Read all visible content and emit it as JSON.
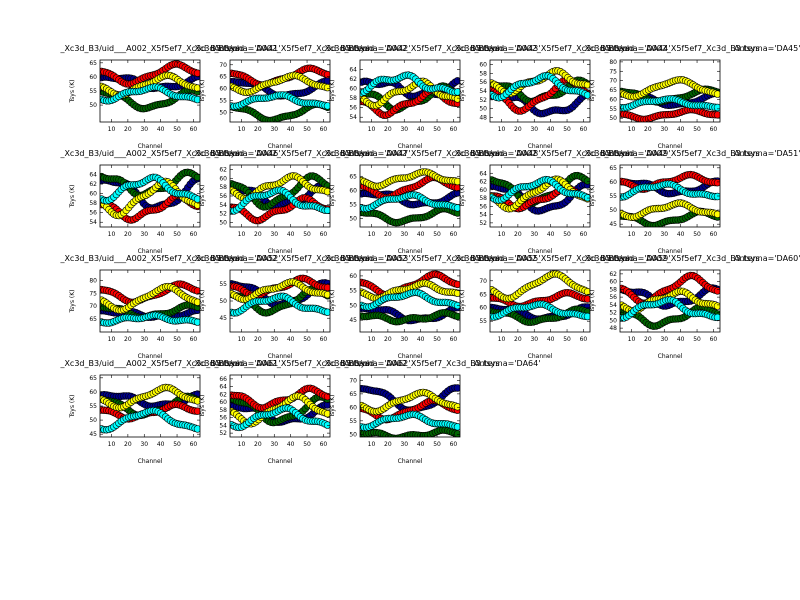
{
  "figure": {
    "xlabel": "Channel",
    "ylabel": "Tsys (K)",
    "series_colors": {
      "XX_spw1": "#00008b",
      "YY_spw1": "#006400",
      "XX_spw2": "#ff0000",
      "YY_spw2": "#ffff00",
      "XX_spw3": "#00ffff"
    },
    "marker_edge": "#000000"
  },
  "chart_data": [
    {
      "type": "scatter",
      "title": "uid___A002_X5f5ef7_Xc3d_B3/uid___A002_X5f5ef7_Xc3d_B3.tsys  Antenna='DA41'",
      "title_left": "_Xc3d_B3/uid___A002_X5f5ef7_Xc3d_B3.tsys",
      "title_right": "Antenna='DA41'",
      "xlim": [
        3,
        64
      ],
      "ylim": [
        44,
        66
      ],
      "xticks": [
        10,
        20,
        30,
        40,
        50,
        60
      ],
      "yticks": [
        50,
        55,
        60,
        65
      ],
      "curves": [
        {
          "base": 58,
          "amp": 2,
          "phase": 0.2
        },
        {
          "base": 52,
          "amp": 3,
          "phase": 1.1
        },
        {
          "base": 61,
          "amp": 3,
          "phase": 2.3
        },
        {
          "base": 57,
          "amp": 3,
          "phase": 3.0
        },
        {
          "base": 54,
          "amp": 2,
          "phase": 4.1
        }
      ]
    },
    {
      "type": "scatter",
      "title": "uid___A002_X5f5ef7_Xc3d_B3/uid___A002_X5f5ef7_Xc3d_B3.tsys  Antenna='DA42'",
      "title_left": "_Xc3d_B3/uid___A002_X5f5ef7_Xc3d_B3.tsys",
      "title_right": "Antenna='DA42'",
      "xlim": [
        3,
        64
      ],
      "ylim": [
        46,
        72
      ],
      "xticks": [
        10,
        20,
        30,
        40,
        50,
        60
      ],
      "yticks": [
        50,
        55,
        60,
        65,
        70
      ],
      "curves": [
        {
          "base": 60,
          "amp": 3,
          "phase": 0.5
        },
        {
          "base": 50,
          "amp": 3,
          "phase": 1.4
        },
        {
          "base": 65,
          "amp": 3,
          "phase": 2.0
        },
        {
          "base": 62,
          "amp": 3,
          "phase": 3.3
        },
        {
          "base": 55,
          "amp": 2,
          "phase": 4.4
        }
      ]
    },
    {
      "type": "scatter",
      "title": "uid___A002_X5f5ef7_Xc3d_B3/uid___A002_X5f5ef7_Xc3d_B3.tsys  Antenna='DA43'",
      "title_left": "_Xc3d_B3/uid___A002_X5f5ef7_Xc3d_B3.tsys",
      "title_right": "Antenna='DA43'",
      "xlim": [
        3,
        64
      ],
      "ylim": [
        53,
        66
      ],
      "xticks": [
        10,
        20,
        30,
        40,
        50,
        60
      ],
      "yticks": [
        54,
        56,
        58,
        60,
        62,
        64
      ],
      "curves": [
        {
          "base": 60,
          "amp": 1.5,
          "phase": 0.1
        },
        {
          "base": 58,
          "amp": 2,
          "phase": 1.7
        },
        {
          "base": 57,
          "amp": 2,
          "phase": 2.6
        },
        {
          "base": 59,
          "amp": 2,
          "phase": 3.5
        },
        {
          "base": 61,
          "amp": 1.5,
          "phase": 4.8
        }
      ]
    },
    {
      "type": "scatter",
      "title": "uid___A002_X5f5ef7_Xc3d_B3/uid___A002_X5f5ef7_Xc3d_B3.tsys  Antenna='DA44'",
      "title_left": "_Xc3d_B3/uid___A002_X5f5ef7_Xc3d_B3.tsys",
      "title_right": "Antenna='DA44'",
      "xlim": [
        3,
        64
      ],
      "ylim": [
        47,
        61
      ],
      "xticks": [
        10,
        20,
        30,
        40,
        50,
        60
      ],
      "yticks": [
        48,
        50,
        52,
        54,
        56,
        58,
        60
      ],
      "curves": [
        {
          "base": 51,
          "amp": 2,
          "phase": 0.3
        },
        {
          "base": 54,
          "amp": 2,
          "phase": 1.2
        },
        {
          "base": 53,
          "amp": 3,
          "phase": 2.2
        },
        {
          "base": 56,
          "amp": 2,
          "phase": 3.1
        },
        {
          "base": 55,
          "amp": 2,
          "phase": 4.0
        }
      ]
    },
    {
      "type": "scatter",
      "title": "uid___A002_X5f5ef7_Xc3d_B3/uid___A002_X5f5ef7_Xc3d_B3.tsys  Antenna='DA45'",
      "title_left": "_Xc3d_B3/uid___A002_X5f5ef7_Xc3d_B3.tsys",
      "title_right": "Antenna='DA45'",
      "xlim": [
        3,
        64
      ],
      "ylim": [
        48,
        81
      ],
      "xticks": [
        10,
        20,
        30,
        40,
        50,
        60
      ],
      "yticks": [
        50,
        55,
        60,
        65,
        70,
        75,
        80
      ],
      "curves": [
        {
          "base": 60,
          "amp": 3,
          "phase": 0.6
        },
        {
          "base": 62,
          "amp": 3,
          "phase": 1.5
        },
        {
          "base": 52,
          "amp": 2,
          "phase": 2.7
        },
        {
          "base": 66,
          "amp": 4,
          "phase": 3.6
        },
        {
          "base": 58,
          "amp": 2,
          "phase": 4.5
        }
      ]
    },
    {
      "type": "scatter",
      "title": "uid___A002_X5f5ef7_Xc3d_B3/uid___A002_X5f5ef7_Xc3d_B3.tsys  Antenna='DA46'",
      "title_left": "_Xc3d_B3/uid___A002_X5f5ef7_Xc3d_B3.tsys",
      "title_right": "Antenna='DA46'",
      "xlim": [
        3,
        64
      ],
      "ylim": [
        53,
        66
      ],
      "xticks": [
        10,
        20,
        30,
        40,
        50,
        60
      ],
      "yticks": [
        54,
        56,
        58,
        60,
        62,
        64
      ],
      "curves": [
        {
          "base": 60,
          "amp": 3,
          "phase": 0.4
        },
        {
          "base": 62,
          "amp": 2,
          "phase": 1.3
        },
        {
          "base": 57,
          "amp": 2,
          "phase": 2.1
        },
        {
          "base": 59,
          "amp": 3,
          "phase": 3.2
        },
        {
          "base": 61,
          "amp": 2,
          "phase": 4.2
        }
      ]
    },
    {
      "type": "scatter",
      "title": "uid___A002_X5f5ef7_Xc3d_B3/uid___A002_X5f5ef7_Xc3d_B3.tsys  Antenna='DA47'",
      "title_left": "_Xc3d_B3/uid___A002_X5f5ef7_Xc3d_B3.tsys",
      "title_right": "Antenna='DA47'",
      "xlim": [
        3,
        64
      ],
      "ylim": [
        49,
        63
      ],
      "xticks": [
        10,
        20,
        30,
        40,
        50,
        60
      ],
      "yticks": [
        50,
        52,
        54,
        56,
        58,
        60,
        62
      ],
      "curves": [
        {
          "base": 56,
          "amp": 2,
          "phase": 0.9
        },
        {
          "base": 57,
          "amp": 3,
          "phase": 1.8
        },
        {
          "base": 53,
          "amp": 2,
          "phase": 2.4
        },
        {
          "base": 58,
          "amp": 2,
          "phase": 3.4
        },
        {
          "base": 55,
          "amp": 2,
          "phase": 4.6
        }
      ]
    },
    {
      "type": "scatter",
      "title": "uid___A002_X5f5ef7_Xc3d_B3/uid___A002_X5f5ef7_Xc3d_B3.tsys  Antenna='DA48'",
      "title_left": "_Xc3d_B3/uid___A002_X5f5ef7_Xc3d_B3.tsys",
      "title_right": "Antenna='DA48'",
      "xlim": [
        3,
        64
      ],
      "ylim": [
        47,
        69
      ],
      "xticks": [
        10,
        20,
        30,
        40,
        50,
        60
      ],
      "yticks": [
        50,
        55,
        60,
        65
      ],
      "curves": [
        {
          "base": 57,
          "amp": 2,
          "phase": 0.2
        },
        {
          "base": 51,
          "amp": 2,
          "phase": 1.6
        },
        {
          "base": 61,
          "amp": 3,
          "phase": 2.5
        },
        {
          "base": 64,
          "amp": 2,
          "phase": 3.3
        },
        {
          "base": 56,
          "amp": 2,
          "phase": 4.3
        }
      ]
    },
    {
      "type": "scatter",
      "title": "uid___A002_X5f5ef7_Xc3d_B3/uid___A002_X5f5ef7_Xc3d_B3.tsys  Antenna='DA49'",
      "title_left": "_Xc3d_B3/uid___A002_X5f5ef7_Xc3d_B3.tsys",
      "title_right": "Antenna='DA49'",
      "xlim": [
        3,
        64
      ],
      "ylim": [
        51,
        66
      ],
      "xticks": [
        10,
        20,
        30,
        40,
        50,
        60
      ],
      "yticks": [
        52,
        54,
        56,
        58,
        60,
        62,
        64
      ],
      "curves": [
        {
          "base": 58,
          "amp": 3,
          "phase": 0.7
        },
        {
          "base": 60,
          "amp": 3,
          "phase": 1.4
        },
        {
          "base": 58,
          "amp": 2,
          "phase": 2.3
        },
        {
          "base": 59,
          "amp": 3,
          "phase": 3.1
        },
        {
          "base": 60,
          "amp": 2,
          "phase": 4.0
        }
      ]
    },
    {
      "type": "scatter",
      "title": "uid___A002_X5f5ef7_Xc3d_B3/uid___A002_X5f5ef7_Xc3d_B3.tsys  Antenna='DA51'",
      "title_left": "_Xc3d_B3/uid___A002_X5f5ef7_Xc3d_B3.tsys",
      "title_right": "Antenna='DA51'",
      "xlim": [
        3,
        64
      ],
      "ylim": [
        44,
        66
      ],
      "xticks": [
        10,
        20,
        30,
        40,
        50,
        60
      ],
      "yticks": [
        45,
        50,
        55,
        60,
        65
      ],
      "curves": [
        {
          "base": 58,
          "amp": 2,
          "phase": 0.5
        },
        {
          "base": 47,
          "amp": 2,
          "phase": 1.9
        },
        {
          "base": 60,
          "amp": 2,
          "phase": 2.8
        },
        {
          "base": 50,
          "amp": 2,
          "phase": 3.7
        },
        {
          "base": 57,
          "amp": 2,
          "phase": 4.7
        }
      ]
    },
    {
      "type": "scatter",
      "title": "uid___A002_X5f5ef7_Xc3d_B3/uid___A002_X5f5ef7_Xc3d_B3.tsys  Antenna='DA52'",
      "title_left": "_Xc3d_B3/uid___A002_X5f5ef7_Xc3d_B3.tsys",
      "title_right": "Antenna='DA52'",
      "xlim": [
        3,
        64
      ],
      "ylim": [
        60,
        84
      ],
      "xticks": [
        10,
        20,
        30,
        40,
        50,
        60
      ],
      "yticks": [
        65,
        70,
        75,
        80
      ],
      "curves": [
        {
          "base": 67,
          "amp": 1,
          "phase": 0.3
        },
        {
          "base": 68,
          "amp": 2,
          "phase": 1.2
        },
        {
          "base": 75,
          "amp": 3,
          "phase": 2.0
        },
        {
          "base": 73,
          "amp": 4,
          "phase": 3.0
        },
        {
          "base": 65,
          "amp": 1,
          "phase": 4.2
        }
      ]
    },
    {
      "type": "scatter",
      "title": "uid___A002_X5f5ef7_Xc3d_B3/uid___A002_X5f5ef7_Xc3d_B3.tsys  Antenna='DA53'",
      "title_left": "_Xc3d_B3/uid___A002_X5f5ef7_Xc3d_B3.tsys",
      "title_right": "Antenna='DA53'",
      "xlim": [
        3,
        64
      ],
      "ylim": [
        41,
        59
      ],
      "xticks": [
        10,
        20,
        30,
        40,
        50,
        60
      ],
      "yticks": [
        45,
        50,
        55
      ],
      "curves": [
        {
          "base": 52,
          "amp": 3,
          "phase": 0.8
        },
        {
          "base": 50,
          "amp": 3,
          "phase": 1.7
        },
        {
          "base": 54,
          "amp": 2,
          "phase": 2.6
        },
        {
          "base": 53,
          "amp": 2,
          "phase": 3.5
        },
        {
          "base": 49,
          "amp": 2,
          "phase": 4.4
        }
      ]
    },
    {
      "type": "scatter",
      "title": "uid___A002_X5f5ef7_Xc3d_B3/uid___A002_X5f5ef7_Xc3d_B3.tsys  Antenna='DA55'",
      "title_left": "_Xc3d_B3/uid___A002_X5f5ef7_Xc3d_B3.tsys",
      "title_right": "Antenna='DA55'",
      "xlim": [
        3,
        64
      ],
      "ylim": [
        41,
        62
      ],
      "xticks": [
        10,
        20,
        30,
        40,
        50,
        60
      ],
      "yticks": [
        45,
        50,
        55,
        60
      ],
      "curves": [
        {
          "base": 47,
          "amp": 2,
          "phase": 0.4
        },
        {
          "base": 46,
          "amp": 1,
          "phase": 1.5
        },
        {
          "base": 57,
          "amp": 3,
          "phase": 2.4
        },
        {
          "base": 55,
          "amp": 2,
          "phase": 3.3
        },
        {
          "base": 52,
          "amp": 2,
          "phase": 4.1
        }
      ]
    },
    {
      "type": "scatter",
      "title": "uid___A002_X5f5ef7_Xc3d_B3/uid___A002_X5f5ef7_Xc3d_B3.tsys  Antenna='DA59'",
      "title_left": "_Xc3d_B3/uid___A002_X5f5ef7_Xc3d_B3.tsys",
      "title_right": "Antenna='DA59'",
      "xlim": [
        3,
        64
      ],
      "ylim": [
        51,
        74
      ],
      "xticks": [
        10,
        20,
        30,
        40,
        50,
        60
      ],
      "yticks": [
        55,
        60,
        65,
        70
      ],
      "curves": [
        {
          "base": 58,
          "amp": 2,
          "phase": 0.6
        },
        {
          "base": 57,
          "amp": 2,
          "phase": 1.3
        },
        {
          "base": 63,
          "amp": 2,
          "phase": 2.2
        },
        {
          "base": 68,
          "amp": 4,
          "phase": 3.2
        },
        {
          "base": 59,
          "amp": 2,
          "phase": 4.5
        }
      ]
    },
    {
      "type": "scatter",
      "title": "uid___A002_X5f5ef7_Xc3d_B3/uid___A002_X5f5ef7_Xc3d_B3.tsys  Antenna='DA60'",
      "title_left": "_Xc3d_B3/uid___A002_X5f5ef7_Xc3d_B3.tsys",
      "title_right": "Antenna='DA60'",
      "xlim": [
        3,
        64
      ],
      "ylim": [
        47,
        63
      ],
      "xticks": [
        10,
        20,
        30,
        40,
        50,
        60
      ],
      "yticks": [
        48,
        50,
        52,
        54,
        56,
        58,
        60,
        62
      ],
      "curves": [
        {
          "base": 56,
          "amp": 2,
          "phase": 0.9
        },
        {
          "base": 51,
          "amp": 2,
          "phase": 1.8
        },
        {
          "base": 58,
          "amp": 3,
          "phase": 2.7
        },
        {
          "base": 55,
          "amp": 2,
          "phase": 3.6
        },
        {
          "base": 53,
          "amp": 2,
          "phase": 4.6
        }
      ]
    },
    {
      "type": "scatter",
      "title": "uid___A002_X5f5ef7_Xc3d_B3/uid___A002_X5f5ef7_Xc3d_B3.tsys  Antenna='DA61'",
      "title_left": "_Xc3d_B3/uid___A002_X5f5ef7_Xc3d_B3.tsys",
      "title_right": "Antenna='DA61'",
      "xlim": [
        3,
        64
      ],
      "ylim": [
        44,
        66
      ],
      "xticks": [
        10,
        20,
        30,
        40,
        50,
        60
      ],
      "yticks": [
        45,
        50,
        55,
        60,
        65
      ],
      "curves": [
        {
          "base": 57,
          "amp": 2,
          "phase": 0.3
        },
        {
          "base": 55,
          "amp": 3,
          "phase": 1.4
        },
        {
          "base": 53,
          "amp": 2,
          "phase": 2.3
        },
        {
          "base": 58,
          "amp": 3,
          "phase": 3.1
        },
        {
          "base": 50,
          "amp": 3,
          "phase": 4.2
        }
      ]
    },
    {
      "type": "scatter",
      "title": "uid___A002_X5f5ef7_Xc3d_B3/uid___A002_X5f5ef7_Xc3d_B3.tsys  Antenna='DA62'",
      "title_left": "_Xc3d_B3/uid___A002_X5f5ef7_Xc3d_B3.tsys",
      "title_right": "Antenna='DA62'",
      "xlim": [
        3,
        64
      ],
      "ylim": [
        51,
        67
      ],
      "xticks": [
        10,
        20,
        30,
        40,
        50,
        60
      ],
      "yticks": [
        52,
        54,
        56,
        58,
        60,
        62,
        64,
        66
      ],
      "curves": [
        {
          "base": 57,
          "amp": 2,
          "phase": 0.5
        },
        {
          "base": 58,
          "amp": 3,
          "phase": 1.1
        },
        {
          "base": 61,
          "amp": 2,
          "phase": 2.0
        },
        {
          "base": 58,
          "amp": 3,
          "phase": 3.0
        },
        {
          "base": 56,
          "amp": 2,
          "phase": 4.0
        }
      ]
    },
    {
      "type": "scatter",
      "title": "uid___A002_X5f5ef7_Xc3d_B3/uid___A002_X5f5ef7_Xc3d_B3.tsys  Antenna='DA64'",
      "title_left": "_Xc3d_B3/uid___A002_X5f5ef7_Xc3d_B3.tsys",
      "title_right": "Antenna='DA64'",
      "xlim": [
        3,
        64
      ],
      "ylim": [
        49,
        72
      ],
      "xticks": [
        10,
        20,
        30,
        40,
        50,
        60
      ],
      "yticks": [
        50,
        55,
        60,
        65,
        70
      ],
      "curves": [
        {
          "base": 63,
          "amp": 4,
          "phase": 0.7
        },
        {
          "base": 50,
          "amp": 1,
          "phase": 1.6
        },
        {
          "base": 59,
          "amp": 3,
          "phase": 2.5
        },
        {
          "base": 62,
          "amp": 3,
          "phase": 3.4
        },
        {
          "base": 55,
          "amp": 2,
          "phase": 4.3
        }
      ]
    }
  ]
}
